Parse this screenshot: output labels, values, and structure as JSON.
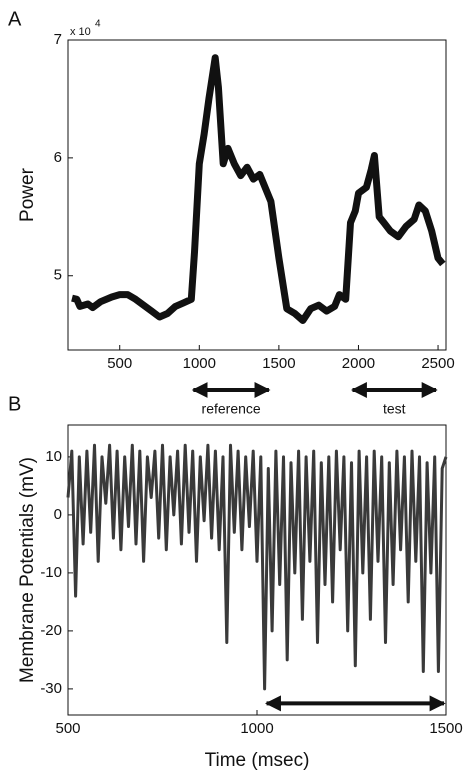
{
  "chart_data": [
    {
      "type": "line",
      "panel_label": "A",
      "ylabel": "Power",
      "multiplier": {
        "base": "x 10",
        "exponent": "4"
      },
      "xlim": [
        175,
        2550
      ],
      "ylim": [
        4.37,
        7
      ],
      "xticks": [
        500,
        1000,
        1500,
        2000,
        2500
      ],
      "yticks": [
        5,
        6,
        7
      ],
      "series": [
        {
          "color": "#111111",
          "x": [
            200,
            230,
            250,
            300,
            330,
            380,
            450,
            500,
            550,
            600,
            650,
            700,
            750,
            800,
            850,
            900,
            950,
            970,
            1000,
            1030,
            1060,
            1100,
            1120,
            1150,
            1180,
            1220,
            1260,
            1300,
            1340,
            1380,
            1450,
            1500,
            1550,
            1600,
            1650,
            1700,
            1750,
            1800,
            1850,
            1880,
            1920,
            1950,
            1980,
            2000,
            2050,
            2080,
            2100,
            2130,
            2160,
            2200,
            2250,
            2300,
            2350,
            2380,
            2420,
            2460,
            2500,
            2530
          ],
          "values": [
            4.81,
            4.8,
            4.74,
            4.76,
            4.73,
            4.78,
            4.82,
            4.84,
            4.84,
            4.8,
            4.75,
            4.7,
            4.65,
            4.68,
            4.74,
            4.77,
            4.8,
            5.2,
            5.95,
            6.2,
            6.5,
            6.85,
            6.6,
            5.95,
            6.08,
            5.95,
            5.85,
            5.92,
            5.82,
            5.86,
            5.63,
            5.15,
            4.72,
            4.68,
            4.62,
            4.72,
            4.75,
            4.7,
            4.74,
            4.84,
            4.8,
            5.45,
            5.55,
            5.7,
            5.75,
            5.9,
            6.02,
            5.5,
            5.45,
            5.38,
            5.33,
            5.42,
            5.48,
            5.6,
            5.55,
            5.38,
            5.15,
            5.1
          ]
        }
      ],
      "annotations": [
        {
          "label": "reference",
          "x": [
            950,
            1450
          ]
        },
        {
          "label": "test",
          "x": [
            1950,
            2500
          ]
        }
      ]
    },
    {
      "type": "line",
      "panel_label": "B",
      "ylabel": "Membrane Potentials (mV)",
      "xlabel": "Time (msec)",
      "xlim": [
        500,
        1500
      ],
      "ylim": [
        -34.5,
        15.5
      ],
      "xticks": [
        500,
        1000,
        1500
      ],
      "yticks": [
        10,
        0,
        -10,
        -20,
        -30
      ],
      "series": [
        {
          "color": "#3a3a3a",
          "x": [
            500,
            510,
            520,
            530,
            540,
            550,
            560,
            570,
            580,
            590,
            600,
            610,
            620,
            630,
            640,
            650,
            660,
            670,
            680,
            690,
            700,
            710,
            720,
            730,
            740,
            750,
            760,
            770,
            780,
            790,
            800,
            810,
            820,
            830,
            840,
            850,
            860,
            870,
            880,
            890,
            900,
            910,
            920,
            930,
            940,
            950,
            960,
            970,
            980,
            990,
            1000,
            1010,
            1020,
            1030,
            1040,
            1050,
            1060,
            1070,
            1080,
            1090,
            1100,
            1110,
            1120,
            1130,
            1140,
            1150,
            1160,
            1170,
            1180,
            1190,
            1200,
            1210,
            1220,
            1230,
            1240,
            1250,
            1260,
            1270,
            1280,
            1290,
            1300,
            1310,
            1320,
            1330,
            1340,
            1350,
            1360,
            1370,
            1380,
            1390,
            1400,
            1410,
            1420,
            1430,
            1440,
            1450,
            1460,
            1470,
            1480,
            1490,
            1500
          ],
          "values": [
            3,
            11,
            -14,
            10,
            -5,
            11,
            -3,
            12,
            -8,
            10,
            2,
            12,
            -4,
            11,
            -6,
            10,
            -2,
            12,
            -5,
            11,
            -8,
            10,
            3,
            11,
            -4,
            12,
            -6,
            10,
            0,
            11,
            -5,
            12,
            -3,
            11,
            -8,
            10,
            -1,
            12,
            -4,
            11,
            -6,
            10,
            -22,
            12,
            -3,
            11,
            -6,
            10,
            -2,
            11,
            -8,
            10,
            -30,
            8,
            -20,
            11,
            -12,
            10,
            -25,
            9,
            -10,
            11,
            -18,
            10,
            -8,
            11,
            -22,
            9,
            -12,
            10,
            -15,
            11,
            -6,
            10,
            -20,
            9,
            -26,
            11,
            -10,
            10,
            -18,
            11,
            -8,
            10,
            -22,
            9,
            -12,
            11,
            -6,
            10,
            -15,
            11,
            -8,
            10,
            -27,
            9,
            -10,
            10,
            -27,
            8,
            10
          ]
        }
      ],
      "annotations": [
        {
          "x": [
            1020,
            1500
          ],
          "y": -32.5
        }
      ]
    }
  ]
}
